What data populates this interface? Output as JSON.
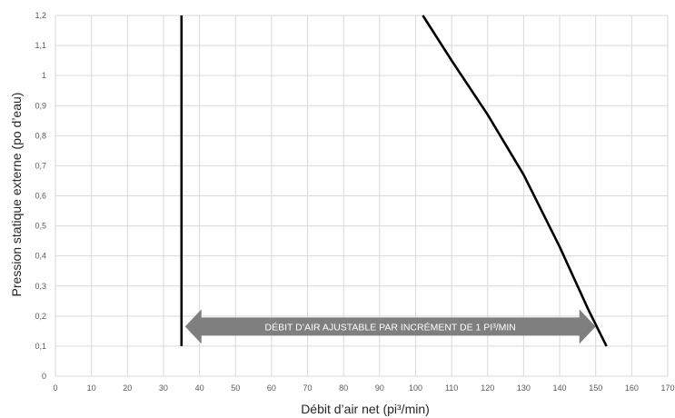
{
  "chart_data": {
    "type": "line",
    "xlabel": "Débit d’air net (pi³/min)",
    "ylabel": "Pression statique externe (po d’eau)",
    "xlim": [
      0,
      170
    ],
    "ylim": [
      0,
      1.2
    ],
    "x_ticks": [
      0,
      10,
      20,
      30,
      40,
      50,
      60,
      70,
      80,
      90,
      100,
      110,
      120,
      130,
      140,
      150,
      160,
      170
    ],
    "x_tick_labels": [
      "0",
      "10",
      "20",
      "30",
      "40",
      "50",
      "60",
      "70",
      "80",
      "90",
      "100",
      "110",
      "120",
      "130",
      "140",
      "150",
      "160",
      "170"
    ],
    "y_ticks": [
      0,
      0.1,
      0.2,
      0.3,
      0.4,
      0.5,
      0.6,
      0.7,
      0.8,
      0.9,
      1.0,
      1.1,
      1.2
    ],
    "y_tick_labels": [
      "0",
      "0,1",
      "0,2",
      "0,3",
      "0,4",
      "0,5",
      "0,6",
      "0,7",
      "0,8",
      "0,9",
      "1",
      "1,1",
      "1,2"
    ],
    "grid": true,
    "series": [
      {
        "points": [
          [
            35,
            0.1
          ],
          [
            35,
            1.2
          ]
        ]
      },
      {
        "points": [
          [
            102,
            1.2
          ],
          [
            110,
            1.05
          ],
          [
            120,
            0.87
          ],
          [
            130,
            0.67
          ],
          [
            140,
            0.43
          ],
          [
            148,
            0.22
          ],
          [
            153,
            0.1
          ]
        ]
      }
    ],
    "annotation": {
      "text": "DÉBIT D’AIR AJUSTABLE PAR INCRÉMENT DE 1 PI³/MIN",
      "x_start": 36,
      "x_end": 150,
      "y": 0.165
    },
    "colors": {
      "line": "#000000",
      "grid": "#d9d9d9",
      "arrow": "#7f7f7f",
      "arrow_text": "#ffffff"
    }
  }
}
